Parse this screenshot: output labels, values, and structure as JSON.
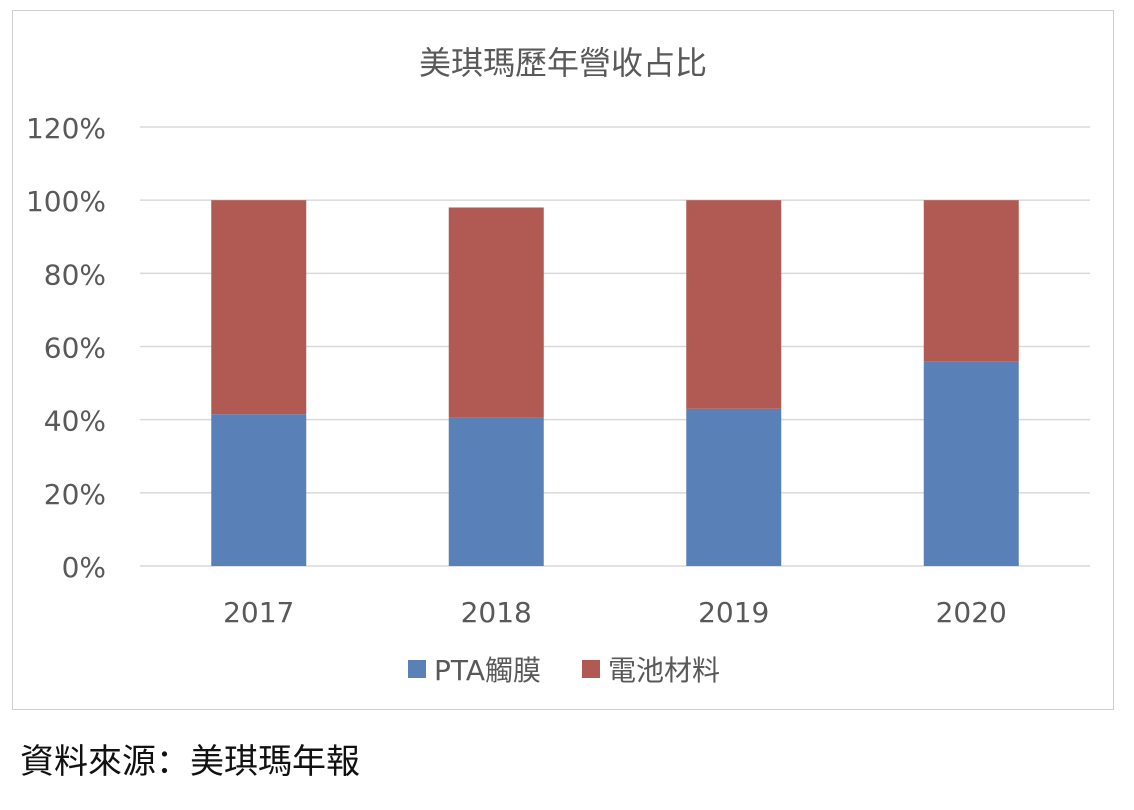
{
  "chart_data": {
    "type": "bar",
    "stacked": true,
    "title": "美琪瑪歷年營收占比",
    "categories": [
      "2017",
      "2018",
      "2019",
      "2020"
    ],
    "series": [
      {
        "name": "PTA觸膜",
        "color": "#5a80b8",
        "values": [
          41.5,
          40.5,
          43,
          56
        ]
      },
      {
        "name": "電池材料",
        "color": "#b05a53",
        "values": [
          58.5,
          57.5,
          57,
          44
        ]
      }
    ],
    "ylim": [
      0,
      120
    ],
    "yticks": [
      "0%",
      "20%",
      "40%",
      "60%",
      "80%",
      "100%",
      "120%"
    ],
    "ytick_values": [
      0,
      20,
      40,
      60,
      80,
      100,
      120
    ],
    "grid": true,
    "legend_position": "bottom"
  },
  "source_note": "資料來源：美琪瑪年報"
}
